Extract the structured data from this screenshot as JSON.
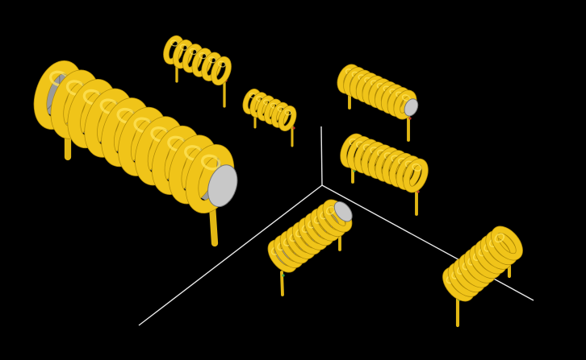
{
  "scene": {
    "background": "#000000",
    "axis_color": "#e8e8e8",
    "coil_color": "#f0c419",
    "coil_shade": "#b08a06",
    "coil_highlight": "#ffe45c",
    "core_color": "#9a9a9a",
    "core_highlight": "#c8c8c8",
    "lead_color": "#e2b814",
    "pin_accents": [
      "#3aa64a",
      "#c0392b"
    ]
  },
  "components": [
    {
      "name": "coil-large-cored",
      "has_core": true,
      "turns": 10
    },
    {
      "name": "coil-air-small-a",
      "has_core": false,
      "turns": 6
    },
    {
      "name": "coil-air-small-b",
      "has_core": false,
      "turns": 6
    },
    {
      "name": "coil-cored-right-top",
      "has_core": true,
      "turns": 10
    },
    {
      "name": "coil-air-right-mid",
      "has_core": false,
      "turns": 10
    },
    {
      "name": "coil-cored-center-bottom",
      "has_core": true,
      "turns": 10
    },
    {
      "name": "coil-air-right-bottom",
      "has_core": false,
      "turns": 10
    }
  ]
}
